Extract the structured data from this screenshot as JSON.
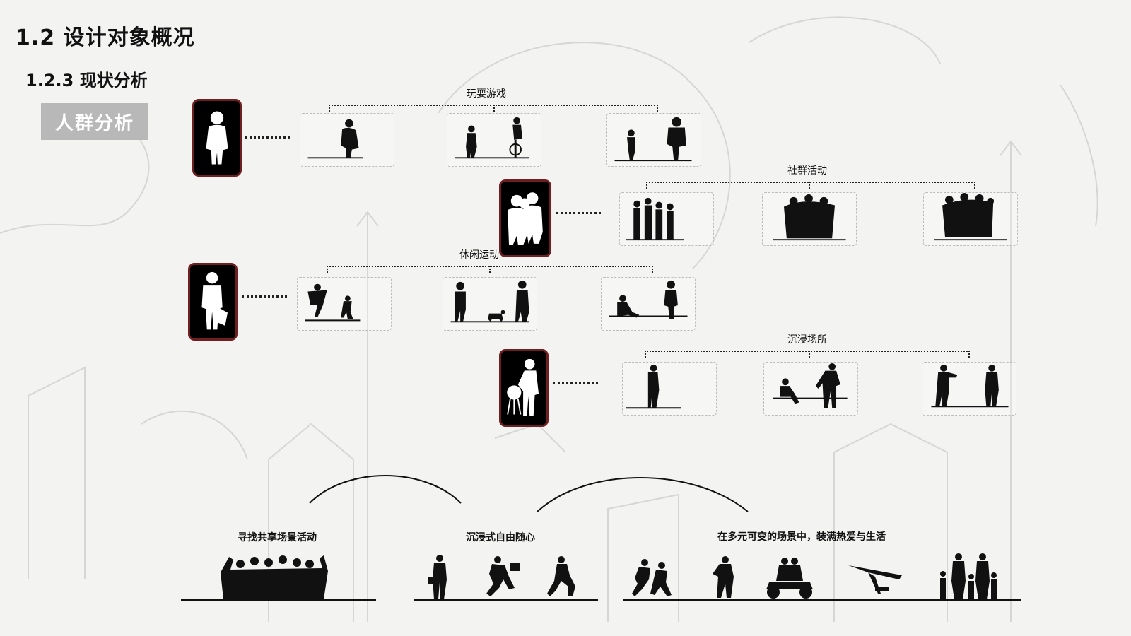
{
  "header": {
    "title": "1.2 设计对象概况",
    "subtitle": "1.2.3 现状分析",
    "badge": "人群分析"
  },
  "categories": [
    {
      "label": "玩耍游戏"
    },
    {
      "label": "社群活动"
    },
    {
      "label": "休闲运动"
    },
    {
      "label": "沉浸场所"
    }
  ],
  "bottom": {
    "labels": [
      "寻找共享场景活动",
      "沉浸式自由随心",
      "在多元可变的场景中，装满热爱与生活"
    ]
  },
  "colors": {
    "avatar_border": "#6e1f22",
    "badge_bg": "#b9b8b8",
    "ink": "#111111"
  }
}
